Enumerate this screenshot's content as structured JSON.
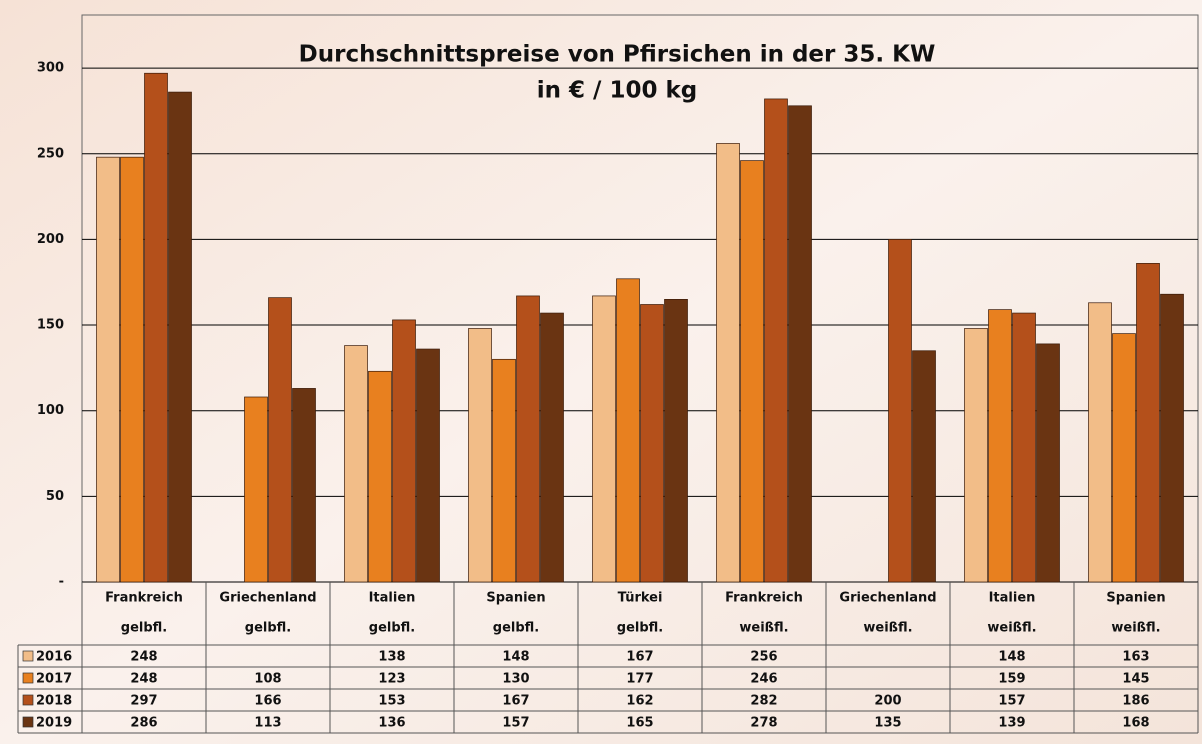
{
  "chart_data": {
    "type": "bar",
    "title": "Durchschnittspreise von Pfirsichen in der 35. KW",
    "subtitle": "in € / 100 kg",
    "categories": [
      [
        "Frankreich",
        "gelbfl."
      ],
      [
        "Griechenland",
        "gelbfl."
      ],
      [
        "Italien",
        "gelbfl."
      ],
      [
        "Spanien",
        "gelbfl."
      ],
      [
        "Türkei",
        "gelbfl."
      ],
      [
        "Frankreich",
        "weißfl."
      ],
      [
        "Griechenland",
        "weißfl."
      ],
      [
        "Italien",
        "weißfl."
      ],
      [
        "Spanien",
        "weißfl."
      ]
    ],
    "series": [
      {
        "name": "2016",
        "color": "#f2bd88",
        "values": [
          248,
          null,
          138,
          148,
          167,
          256,
          null,
          148,
          163
        ]
      },
      {
        "name": "2017",
        "color": "#e8801f",
        "values": [
          248,
          108,
          123,
          130,
          177,
          246,
          null,
          159,
          145
        ]
      },
      {
        "name": "2018",
        "color": "#b4501b",
        "values": [
          297,
          166,
          153,
          167,
          162,
          282,
          200,
          157,
          186
        ]
      },
      {
        "name": "2019",
        "color": "#6a3412",
        "values": [
          286,
          113,
          136,
          157,
          165,
          278,
          135,
          139,
          168
        ]
      }
    ],
    "ylim": [
      0,
      331
    ],
    "yticks": [
      {
        "value": 0,
        "label": "-"
      },
      50,
      100,
      150,
      200,
      250,
      300
    ],
    "grid": true
  }
}
